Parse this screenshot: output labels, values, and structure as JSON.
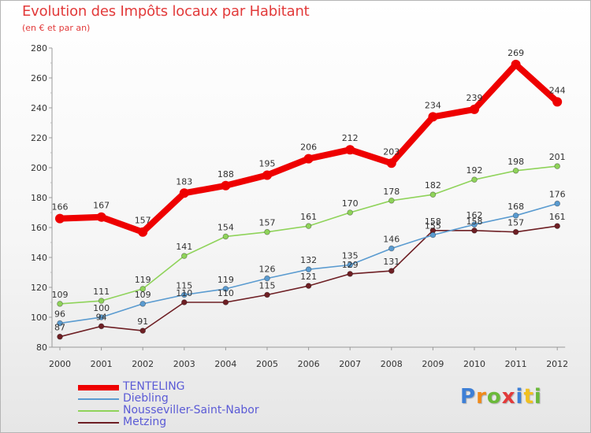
{
  "chart_data": {
    "type": "line",
    "title": "Evolution des Impôts locaux par Habitant",
    "subtitle": "(en € et par an)",
    "xlabel": "",
    "ylabel": "",
    "ylim": [
      80,
      280
    ],
    "yticks": [
      80,
      100,
      120,
      140,
      160,
      180,
      200,
      220,
      240,
      260,
      280
    ],
    "x": [
      "2000",
      "2001",
      "2002",
      "2003",
      "2004",
      "2005",
      "2006",
      "2007",
      "2008",
      "2009",
      "2010",
      "2011",
      "2012"
    ],
    "grid": false,
    "legend_position": "bottom-left",
    "series": [
      {
        "name": "TENTELING",
        "color": "#ee0000",
        "values": [
          166,
          167,
          157,
          183,
          188,
          195,
          206,
          212,
          203,
          234,
          239,
          269,
          244
        ]
      },
      {
        "name": "Diebling",
        "color": "#5a9bd0",
        "values": [
          96,
          100,
          109,
          115,
          119,
          126,
          132,
          135,
          146,
          155,
          162,
          168,
          176
        ]
      },
      {
        "name": "Nousseviller-Saint-Nabor",
        "color": "#8fd35a",
        "values": [
          109,
          111,
          119,
          141,
          154,
          157,
          161,
          170,
          178,
          182,
          192,
          198,
          201
        ]
      },
      {
        "name": "Metzing",
        "color": "#6e1f24",
        "values": [
          87,
          94,
          91,
          110,
          110,
          115,
          121,
          129,
          131,
          158,
          158,
          157,
          161
        ]
      }
    ]
  },
  "brand": {
    "letters": [
      "P",
      "r",
      "o",
      "x",
      "i",
      "t",
      "i"
    ],
    "colors": [
      "#3d7fd6",
      "#f08a1a",
      "#6bb93a",
      "#e23a3a",
      "#3d7fd6",
      "#f0c020",
      "#6bb93a"
    ]
  }
}
